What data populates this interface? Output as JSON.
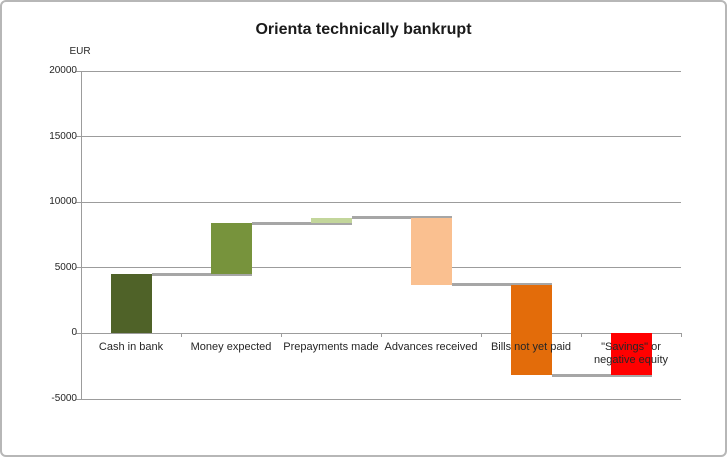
{
  "window": {
    "background": "#ffffff",
    "border_color": "#b7b7b7"
  },
  "chart_data": {
    "type": "bar",
    "subtype": "waterfall",
    "title": "Orienta technically bankrupt",
    "unit_label": "EUR",
    "xlabel": "",
    "ylabel": "EUR",
    "ylim": [
      -5000,
      20000
    ],
    "y_ticks": [
      20000,
      15000,
      10000,
      5000,
      0,
      -5000
    ],
    "grid": "horizontal gridlines on",
    "legend": "none",
    "categories": [
      "Cash in bank",
      "Money expected",
      "Prepayments made",
      "Advances received",
      "Bills not yet paid",
      "\"Savings\" or negative equity"
    ],
    "bars": [
      {
        "label": "Cash in bank",
        "delta": 4500,
        "start": 0,
        "end": 4500,
        "color": "#4F6228"
      },
      {
        "label": "Money expected",
        "delta": 3900,
        "start": 4500,
        "end": 8400,
        "color": "#77933C"
      },
      {
        "label": "Prepayments made",
        "delta": 400,
        "start": 8400,
        "end": 8800,
        "color": "#C3D69B"
      },
      {
        "label": "Advances received",
        "delta": -5100,
        "start": 8800,
        "end": 3700,
        "color": "#FAC090"
      },
      {
        "label": "Bills not yet paid",
        "delta": -6900,
        "start": 3700,
        "end": -3200,
        "color": "#E36C0A"
      },
      {
        "label": "\"Savings\" or negative equity",
        "delta": -3200,
        "start": 0,
        "end": -3200,
        "color": "#FF0000",
        "is_total": true
      }
    ],
    "colors": {
      "connector": "#A6A6A6",
      "gridline": "#9c9c9c",
      "axis_text": "#262626",
      "title_text": "#1a1a1a"
    }
  }
}
